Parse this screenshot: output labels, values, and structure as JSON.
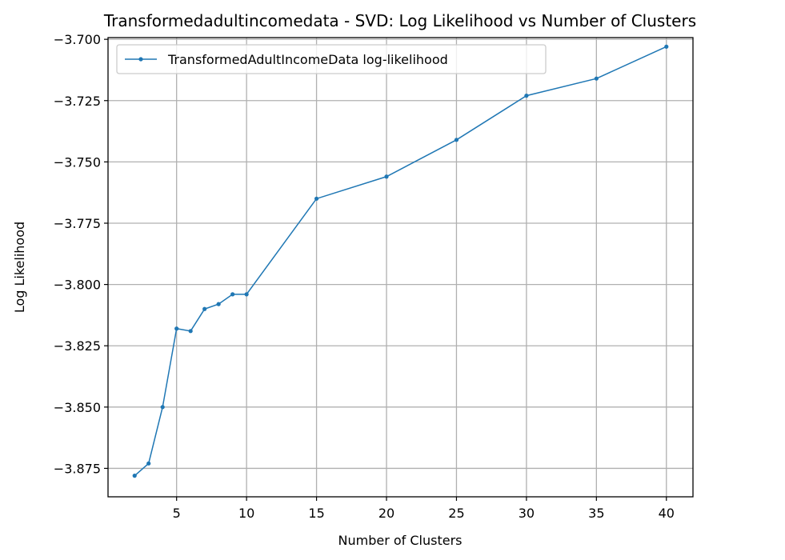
{
  "chart_data": {
    "type": "line",
    "title": "Transformedadultincomedata - SVD: Log Likelihood vs Number of Clusters",
    "xlabel": "Number of Clusters",
    "ylabel": "Log Likelihood",
    "xlim": [
      0.1,
      41.9
    ],
    "ylim": [
      -3.8866,
      -3.6993
    ],
    "xticks": [
      5,
      10,
      15,
      20,
      25,
      30,
      35,
      40
    ],
    "yticks": [
      -3.875,
      -3.85,
      -3.825,
      -3.8,
      -3.775,
      -3.75,
      -3.725,
      -3.7
    ],
    "xtick_labels": [
      "5",
      "10",
      "15",
      "20",
      "25",
      "30",
      "35",
      "40"
    ],
    "ytick_labels": [
      "−3.875",
      "−3.850",
      "−3.825",
      "−3.800",
      "−3.775",
      "−3.750",
      "−3.725",
      "−3.700"
    ],
    "grid": true,
    "legend_position": "top-left",
    "series": [
      {
        "name": "TransformedAdultIncomeData log-likelihood",
        "color": "#1f77b4",
        "x": [
          2,
          3,
          4,
          5,
          6,
          7,
          8,
          9,
          10,
          15,
          20,
          25,
          30,
          35,
          40
        ],
        "y": [
          -3.878,
          -3.873,
          -3.85,
          -3.818,
          -3.819,
          -3.81,
          -3.808,
          -3.804,
          -3.804,
          -3.765,
          -3.756,
          -3.741,
          -3.723,
          -3.716,
          -3.703
        ]
      }
    ]
  }
}
